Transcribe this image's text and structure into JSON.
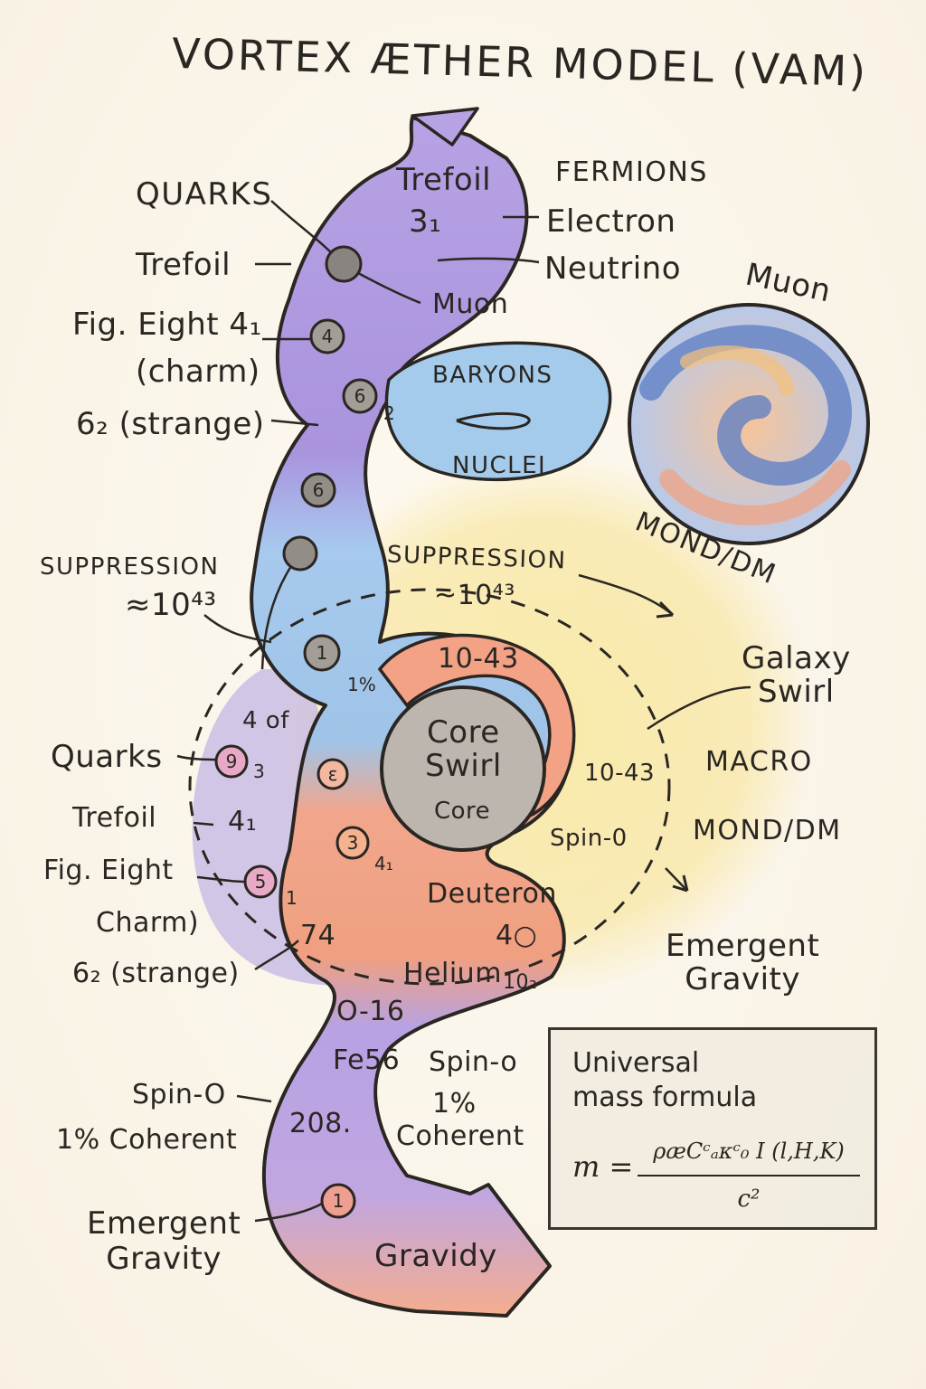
{
  "title": "VORTEX ÆTHER MODEL (VAM)",
  "upper": {
    "quarks": "QUARKS",
    "trefoil": "Trefoil",
    "fig_eight": "Fig. Eight 4₁",
    "charm": "(charm)",
    "strange": "6₂ (strange)",
    "band_trefoil": "Trefoil",
    "band_31": "3₁",
    "fermions": "FERMIONS",
    "electron": "Electron",
    "neutrino": "Neutrino",
    "muon_band": "Muon",
    "baryons": "BARYONS",
    "nuclei": "NUCLEI",
    "suppression_left": "SUPPRESSION",
    "suppression_left_val": "≈10⁴³",
    "suppression_center": "SUPPRESSION",
    "suppression_center_val": "~10⁴³"
  },
  "muon_sphere": {
    "label": "Muon",
    "caption": "MOND/DM"
  },
  "nodes": {
    "n1": "",
    "n2": "4",
    "n3": "6",
    "n3_sub": "2",
    "n4": "6",
    "n5": "",
    "n6": "1",
    "n6_sub": "1%",
    "n7": "9",
    "n7_sub": "3",
    "n8": "ε",
    "n9": "3",
    "n9_sub": "4₁",
    "n10": "5",
    "n10_sub": "1",
    "n11": "1"
  },
  "middle": {
    "ten43_top": "10-43",
    "core_swirl": "Core\nSwirl",
    "core": "Core",
    "ten43_right": "10-43",
    "spin0": "Spin-0",
    "galaxy_swirl": "Galaxy\nSwirl",
    "macro": "MACRO",
    "mond_dm": "MOND/DM",
    "emergent_gravity": "Emergent\nGravity",
    "deuteron": "Deuteron",
    "four_o": "4○",
    "helium": "Helium",
    "helium_sub": "10₂",
    "four_of": "4 of",
    "quarks": "Quarks",
    "trefoil": "Trefoil",
    "trefoil_val": "4₁",
    "fig_eight": "Fig. Eight",
    "charm": "Charm)",
    "seventy_four": "74",
    "strange": "6₂ (strange)"
  },
  "lower": {
    "o16": "O-16",
    "fe56": "Fe56",
    "n208": "208.",
    "spin0_band": "Spin-o",
    "one_pct": "1%",
    "coherent": "Coherent",
    "spin0_left": "Spin-O",
    "coherent_left": "1% Coherent",
    "emergent_left": "Emergent\nGravity",
    "gravidy": "Gravidy"
  },
  "formula": {
    "title": "Universal\nmass formula",
    "lhs": "m =",
    "numerator": "ρæCᶜₐκᶜ₀ I (l,H,K)",
    "denominator": "c²"
  },
  "colors": {
    "purple": "#b39ee0",
    "blue": "#9fc6ea",
    "orange": "#f2a488",
    "yellow": "#f8e7a4",
    "core": "#bcb5ad",
    "ink": "#2a2622"
  }
}
